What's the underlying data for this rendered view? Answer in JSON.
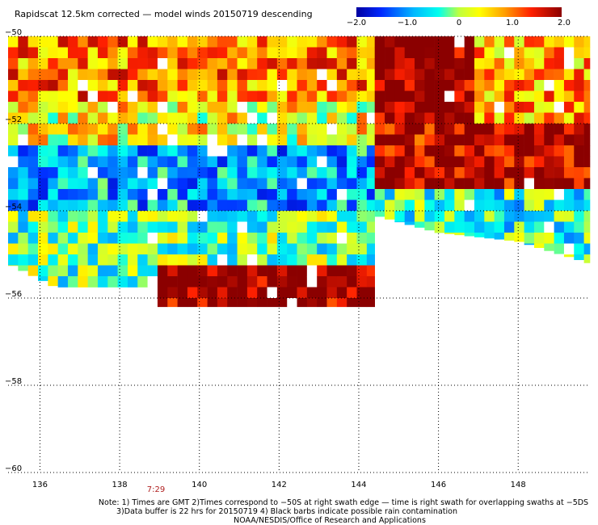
{
  "title": "Rapidscat 12.5km corrected — model winds 20150719 descending",
  "colorbar": {
    "ticks": [
      "−2.0",
      "−1.0",
      "0",
      "1.0",
      "2.0"
    ],
    "values": [
      -2.0,
      -1.0,
      0,
      1.0,
      2.0
    ]
  },
  "time_label": "7:29",
  "notes": [
    "Note: 1) Times are GMT 2)Times correspond to −50S at right swath edge — time is right swath for overlapping swaths at −5DS",
    "3)Data buffer is 22 hrs for 20150719 4) Black barbs indicate possible rain contamination",
    "NOAA/NESDIS/Office of Research and Applications"
  ],
  "chart_data": {
    "type": "heatmap",
    "title": "Rapidscat 12.5km corrected — model winds 20150719 descending",
    "x_ticks": [
      "136",
      "138",
      "140",
      "142",
      "144",
      "146",
      "148"
    ],
    "y_ticks": [
      "−50",
      "−52",
      "−54",
      "−56",
      "−58",
      "−60"
    ],
    "xlim": [
      135.2,
      149.8
    ],
    "ylim": [
      -60,
      -50
    ],
    "value_range": [
      -2.0,
      2.0
    ],
    "grid": true,
    "colors": {
      "low": "#00008b",
      "mid_low": "#00e5ff",
      "mid_high": "#ffff00",
      "high": "#8b0000",
      "no_data": "#ffffff"
    },
    "cell_size_deg": 0.25,
    "swaths": [
      {
        "name": "left swath",
        "lon_range": [
          135.2,
          144.4
        ],
        "lat_top": -50,
        "bottom_edge": [
          [
            135.2,
            -55.2
          ],
          [
            136.5,
            -55.8
          ],
          [
            138.0,
            -55.9
          ],
          [
            139.0,
            -56.2
          ],
          [
            144.4,
            -56.2
          ]
        ],
        "regions": [
          {
            "lon": [
              135.2,
              144.4
            ],
            "lat": [
              -50.0,
              -51.5
            ],
            "value": 1.0
          },
          {
            "lon": [
              135.2,
              144.4
            ],
            "lat": [
              -51.5,
              -52.5
            ],
            "value": 0.4
          },
          {
            "lon": [
              135.2,
              144.4
            ],
            "lat": [
              -52.5,
              -54.0
            ],
            "value": -0.9
          },
          {
            "lon": [
              135.2,
              144.4
            ],
            "lat": [
              -54.0,
              -55.8
            ],
            "value": -0.2
          },
          {
            "lon": [
              139.0,
              144.4
            ],
            "lat": [
              -55.3,
              -56.2
            ],
            "value": 2.0
          }
        ]
      },
      {
        "name": "right swath",
        "lon_range": [
          144.4,
          149.8
        ],
        "lat_top": -50,
        "bottom_edge": [
          [
            144.4,
            -54.1
          ],
          [
            146.0,
            -54.5
          ],
          [
            148.0,
            -54.7
          ],
          [
            149.8,
            -55.2
          ]
        ],
        "regions": [
          {
            "lon": [
              144.4,
              147.0
            ],
            "lat": [
              -50.0,
              -51.7
            ],
            "value": 2.0
          },
          {
            "lon": [
              147.0,
              149.8
            ],
            "lat": [
              -50.0,
              -52.0
            ],
            "value": 0.8
          },
          {
            "lon": [
              144.4,
              147.0
            ],
            "lat": [
              -51.7,
              -53.5
            ],
            "value": 1.8
          },
          {
            "lon": [
              147.0,
              149.8
            ],
            "lat": [
              -52.0,
              -54.0
            ],
            "value": 1.9
          },
          {
            "lon": [
              144.4,
              149.8
            ],
            "lat": [
              -53.5,
              -55.2
            ],
            "value": -0.4
          }
        ]
      }
    ]
  }
}
